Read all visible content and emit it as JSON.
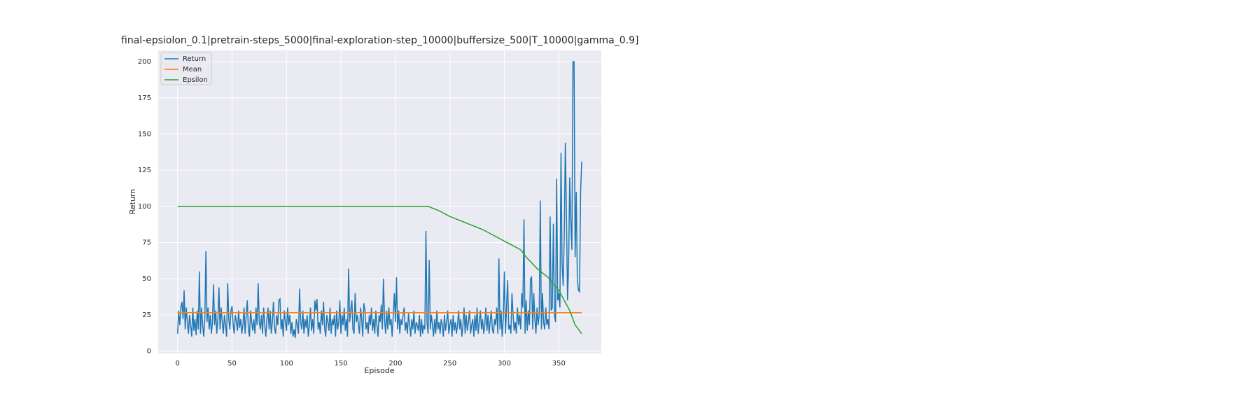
{
  "chart_data": {
    "type": "line",
    "title": "final-epsiolon_0.1|pretrain-steps_5000|final-exploration-step_10000|buffersize_500|T_10000|gamma_0.9]",
    "xlabel": "Episode",
    "ylabel": "Return",
    "xlim": [
      -17.8,
      389
    ],
    "ylim": [
      -1.7,
      207.8
    ],
    "xticks": [
      0,
      50,
      100,
      150,
      200,
      250,
      300,
      350
    ],
    "yticks": [
      0,
      25,
      50,
      75,
      100,
      125,
      150,
      175,
      200
    ],
    "grid": true,
    "legend": "upper left",
    "series": [
      {
        "name": "Return",
        "color": "#1f77b4",
        "x": null,
        "values": [
          12,
          28,
          18,
          30,
          34,
          22,
          42,
          15,
          30,
          20,
          12,
          25,
          18,
          10,
          30,
          14,
          22,
          11,
          28,
          15,
          55,
          12,
          30,
          18,
          10,
          22,
          69,
          20,
          30,
          15,
          25,
          12,
          20,
          46,
          18,
          28,
          12,
          22,
          44,
          15,
          30,
          20,
          12,
          25,
          18,
          10,
          47,
          22,
          15,
          28,
          31,
          18,
          12,
          25,
          20,
          14,
          28,
          16,
          22,
          12,
          18,
          30,
          12,
          25,
          35,
          15,
          10,
          28,
          20,
          14,
          22,
          12,
          30,
          18,
          47,
          20,
          15,
          25,
          12,
          30,
          18,
          10,
          22,
          30,
          15,
          28,
          12,
          20,
          34,
          16,
          12,
          25,
          18,
          35,
          36,
          15,
          22,
          10,
          28,
          20,
          14,
          30,
          18,
          25,
          12,
          20,
          10,
          15,
          9,
          22,
          18,
          12,
          43,
          20,
          15,
          28,
          12,
          22,
          16,
          25,
          10,
          18,
          30,
          14,
          22,
          12,
          35,
          28,
          36,
          15,
          20,
          12,
          28,
          18,
          34,
          16,
          10,
          25,
          20,
          14,
          30,
          12,
          22,
          18,
          25,
          10,
          28,
          15,
          20,
          35,
          12,
          25,
          18,
          30,
          14,
          22,
          10,
          57,
          20,
          28,
          35,
          15,
          12,
          40,
          20,
          25,
          18,
          12,
          30,
          22,
          10,
          33,
          28,
          15,
          20,
          12,
          25,
          18,
          30,
          14,
          22,
          12,
          28,
          18,
          10,
          25,
          20,
          32,
          15,
          50,
          22,
          12,
          28,
          15,
          30,
          18,
          22,
          10,
          25,
          40,
          20,
          51,
          15,
          28,
          12,
          22,
          18,
          25,
          30,
          14,
          20,
          12,
          26,
          18,
          10,
          22,
          15,
          28,
          12,
          20,
          18,
          14,
          25,
          10,
          22,
          12,
          18,
          15,
          83,
          20,
          12,
          63,
          15,
          25,
          18,
          10,
          22,
          12,
          28,
          15,
          20,
          12,
          22,
          18,
          10,
          25,
          14,
          20,
          28,
          12,
          18,
          22,
          10,
          25,
          14,
          20,
          12,
          18,
          28,
          15,
          22,
          10,
          18,
          30,
          12,
          25,
          14,
          20,
          28,
          12,
          18,
          22,
          10,
          25,
          14,
          30,
          12,
          20,
          28,
          15,
          22,
          12,
          18,
          30,
          14,
          25,
          12,
          20,
          28,
          15,
          12,
          22,
          18,
          30,
          12,
          64,
          15,
          28,
          10,
          22,
          55,
          12,
          30,
          49,
          15,
          18,
          12,
          40,
          25,
          14,
          20,
          12,
          30,
          18,
          25,
          15,
          40,
          30,
          91,
          12,
          35,
          14,
          28,
          18,
          50,
          51,
          15,
          40,
          22,
          12,
          30,
          18,
          25,
          104,
          15,
          40,
          20,
          15,
          30,
          18,
          22,
          15,
          93,
          28,
          30,
          88,
          25,
          20,
          119,
          35,
          40,
          30,
          137,
          60,
          45,
          80,
          144,
          95,
          35,
          60,
          120,
          90,
          70,
          200,
          200,
          65,
          110,
          50,
          42,
          41,
          110,
          131
        ]
      },
      {
        "name": "Mean",
        "color": "#ff7f0e",
        "x": [
          0,
          371
        ],
        "values": [
          26.5,
          26.5
        ]
      },
      {
        "name": "Epsilon",
        "color": "#2ca02c",
        "x": [
          0,
          230,
          240,
          250,
          260,
          270,
          280,
          290,
          295,
          300,
          310,
          315,
          320,
          330,
          340,
          350,
          355,
          360,
          365,
          368,
          371
        ],
        "values": [
          100,
          100,
          97,
          93,
          90,
          87,
          84,
          80,
          78,
          76,
          72,
          70,
          65,
          57,
          51,
          42,
          35,
          28,
          18,
          15,
          12
        ]
      }
    ]
  }
}
